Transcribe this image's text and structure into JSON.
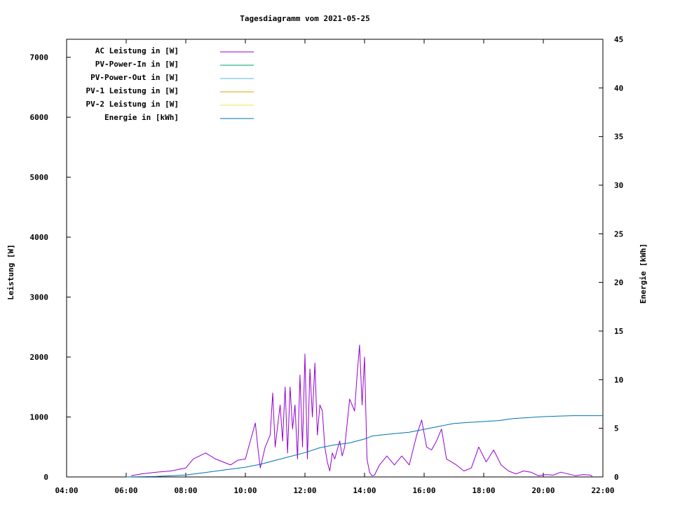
{
  "chart_data": {
    "type": "line",
    "title": "Tagesdiagramm vom 2021-05-25",
    "xlabel": "",
    "ylabel_left": "Leistung [W]",
    "ylabel_right": "Energie [kWh]",
    "x_unit": "time of day (hours)",
    "xlim": [
      4,
      22
    ],
    "ylim_left": [
      0,
      7300
    ],
    "ylim_right": [
      0,
      45
    ],
    "x_ticks": [
      "04:00",
      "06:00",
      "08:00",
      "10:00",
      "12:00",
      "14:00",
      "16:00",
      "18:00",
      "20:00",
      "22:00"
    ],
    "y_ticks_left": [
      "0",
      "1000",
      "2000",
      "3000",
      "4000",
      "5000",
      "6000",
      "7000"
    ],
    "y_ticks_right": [
      "0",
      "5",
      "10",
      "15",
      "20",
      "25",
      "30",
      "35",
      "40",
      "45"
    ],
    "grid": false,
    "legend_position": "top-left",
    "series": [
      {
        "name": "AC Leistung in [W]",
        "axis": "left",
        "color": "#9400d3",
        "x": [
          "06:10",
          "06:30",
          "07:00",
          "07:30",
          "08:00",
          "08:15",
          "08:40",
          "09:00",
          "09:15",
          "09:30",
          "09:45",
          "10:00",
          "10:10",
          "10:20",
          "10:25",
          "10:30",
          "10:40",
          "10:50",
          "10:55",
          "11:00",
          "11:10",
          "11:15",
          "11:20",
          "11:25",
          "11:30",
          "11:35",
          "11:40",
          "11:45",
          "11:50",
          "11:55",
          "12:00",
          "12:05",
          "12:10",
          "12:15",
          "12:20",
          "12:25",
          "12:30",
          "12:35",
          "12:40",
          "12:45",
          "12:50",
          "12:55",
          "13:00",
          "13:05",
          "13:10",
          "13:15",
          "13:20",
          "13:30",
          "13:40",
          "13:45",
          "13:50",
          "13:55",
          "14:00",
          "14:05",
          "14:10",
          "14:15",
          "14:20",
          "14:30",
          "14:45",
          "15:00",
          "15:15",
          "15:30",
          "15:45",
          "15:55",
          "16:05",
          "16:15",
          "16:25",
          "16:35",
          "16:45",
          "16:55",
          "17:05",
          "17:20",
          "17:35",
          "17:50",
          "18:05",
          "18:20",
          "18:35",
          "18:50",
          "19:05",
          "19:20",
          "19:35",
          "19:50",
          "20:05",
          "20:20",
          "20:35",
          "20:50",
          "21:05",
          "21:20",
          "21:35",
          "21:40"
        ],
        "y": [
          20,
          50,
          80,
          100,
          150,
          300,
          400,
          300,
          250,
          200,
          280,
          300,
          600,
          900,
          500,
          150,
          500,
          700,
          1400,
          500,
          1200,
          600,
          1500,
          400,
          1500,
          800,
          1200,
          300,
          1700,
          500,
          2050,
          300,
          1800,
          1000,
          1900,
          700,
          1200,
          1100,
          500,
          250,
          100,
          400,
          300,
          450,
          600,
          350,
          500,
          1300,
          1100,
          1700,
          2200,
          1200,
          2000,
          300,
          80,
          20,
          30,
          200,
          350,
          200,
          350,
          200,
          700,
          950,
          500,
          450,
          600,
          800,
          300,
          250,
          200,
          100,
          150,
          500,
          250,
          450,
          200,
          100,
          50,
          100,
          80,
          20,
          40,
          30,
          80,
          50,
          20,
          40,
          30,
          0
        ]
      },
      {
        "name": "PV-Power-In in [W]",
        "axis": "left",
        "color": "#009e73",
        "x": [],
        "y": []
      },
      {
        "name": "PV-Power-Out in [W]",
        "axis": "left",
        "color": "#56b4e9",
        "x": [],
        "y": []
      },
      {
        "name": "PV-1 Leistung in [W]",
        "axis": "left",
        "color": "#e69f00",
        "x": [],
        "y": []
      },
      {
        "name": "PV-2 Leistung in [W]",
        "axis": "left",
        "color": "#f0e442",
        "x": [],
        "y": []
      },
      {
        "name": "Energie in [kWh]",
        "axis": "right",
        "color": "#0072b2",
        "x": [
          "06:00",
          "07:00",
          "08:00",
          "08:30",
          "09:00",
          "09:30",
          "10:00",
          "10:30",
          "11:00",
          "11:30",
          "12:00",
          "12:30",
          "13:00",
          "13:30",
          "14:00",
          "14:15",
          "14:30",
          "15:00",
          "15:30",
          "16:00",
          "16:30",
          "17:00",
          "17:30",
          "18:00",
          "18:30",
          "19:00",
          "19:30",
          "20:00",
          "20:30",
          "21:00",
          "21:30",
          "22:00"
        ],
        "y": [
          0,
          0.05,
          0.2,
          0.4,
          0.6,
          0.8,
          1.0,
          1.3,
          1.7,
          2.1,
          2.5,
          3.0,
          3.3,
          3.5,
          3.9,
          4.2,
          4.3,
          4.45,
          4.6,
          4.9,
          5.2,
          5.5,
          5.6,
          5.7,
          5.8,
          6.0,
          6.1,
          6.2,
          6.25,
          6.3,
          6.3,
          6.3
        ]
      }
    ]
  }
}
